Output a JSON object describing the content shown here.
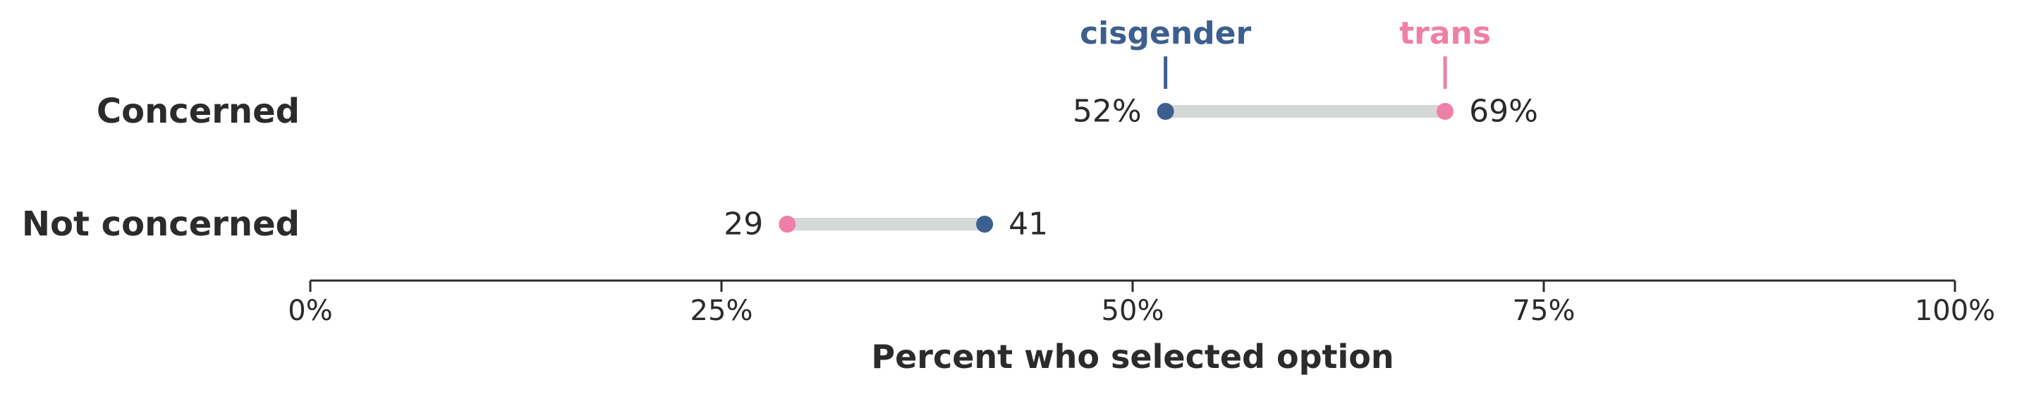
{
  "chart_data": {
    "type": "dumbbell",
    "xlabel": "Percent who selected option",
    "xlim": [
      0,
      100
    ],
    "xticks": [
      0,
      25,
      50,
      75,
      100
    ],
    "xtick_labels": [
      "0%",
      "25%",
      "50%",
      "75%",
      "100%"
    ],
    "categories": [
      "Concerned",
      "Not concerned"
    ],
    "series": [
      {
        "name": "cisgender",
        "color": "#3d5f8f",
        "values": [
          52,
          41
        ],
        "labels": [
          "52%",
          "41"
        ]
      },
      {
        "name": "trans",
        "color": "#f07fa8",
        "values": [
          69,
          29
        ],
        "labels": [
          "69%",
          "29"
        ]
      }
    ],
    "connector_color": "#d5d8d8",
    "grid": false,
    "legend": "direct labels above first row"
  }
}
